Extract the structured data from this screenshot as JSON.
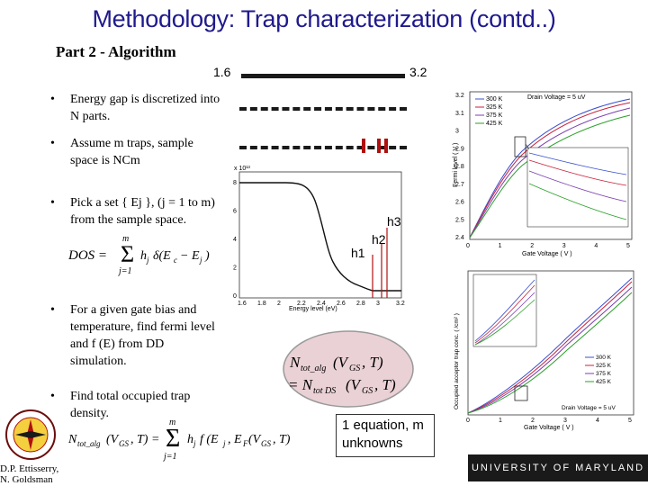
{
  "slide": {
    "title": "Methodology: Trap characterization (contd..)",
    "subtitle": "Part 2 - Algorithm",
    "bullets": [
      "Energy gap is discretized into N parts.",
      "Assume m traps, sample space is NCm",
      "Pick a set { Ej }, (j = 1 to m) from the sample space.",
      "For a given gate bias and temperature, find fermi level and f (E) from DD simulation.",
      "Find total occupied trap density."
    ],
    "energy_start": "1.6",
    "energy_end": "3.2",
    "h_labels": [
      "h1",
      "h2",
      "h3"
    ],
    "equation_main": "N_tot_alg(V_GS, T) = N_tot_DS(V_GS, T)",
    "callout": "1 equation, m unknowns",
    "authors": [
      "D.P. Ettisserry,",
      "N. Goldsman"
    ],
    "university": "UNIVERSITY OF MARYLAND"
  },
  "colors": {
    "title": "#1f1a8c",
    "dark_red": "#6b0d0d",
    "legend_blue": "#3a4fd0",
    "legend_red": "#c8203a",
    "legend_purple": "#7a3fb0",
    "legend_green": "#2aa02a"
  },
  "plot_top": {
    "ylabel": "Fermi level ( V )",
    "xlabel": "Gate Voltage ( V )",
    "legend_title": "Drain Voltage = 5 uV",
    "legend": [
      "300 K",
      "325 K",
      "375 K",
      "425 K"
    ],
    "yticks": [
      "3.2",
      "3.1",
      "3",
      "2.9",
      "2.8",
      "2.7",
      "2.6",
      "2.5",
      "2.4"
    ],
    "xticks": [
      "0",
      "1",
      "2",
      "3",
      "4",
      "5"
    ]
  },
  "plot_mid": {
    "xlabel": "Energy level (eV)",
    "xticks": [
      "1.6",
      "1.8",
      "2",
      "2.2",
      "2.4",
      "2.6",
      "2.8",
      "3",
      "3.2"
    ],
    "yticks": [
      "8",
      "6",
      "4",
      "2",
      "0"
    ]
  },
  "plot_bottom": {
    "ylabel": "Occupied acceptor trap conc. ( /cm² )",
    "xlabel": "Gate Voltage ( V )",
    "legend_title": "Drain Voltage = 5 uV",
    "legend": [
      "300 K",
      "325 K",
      "375 K",
      "425 K"
    ],
    "xticks": [
      "0",
      "1",
      "2",
      "3",
      "4",
      "5"
    ]
  }
}
